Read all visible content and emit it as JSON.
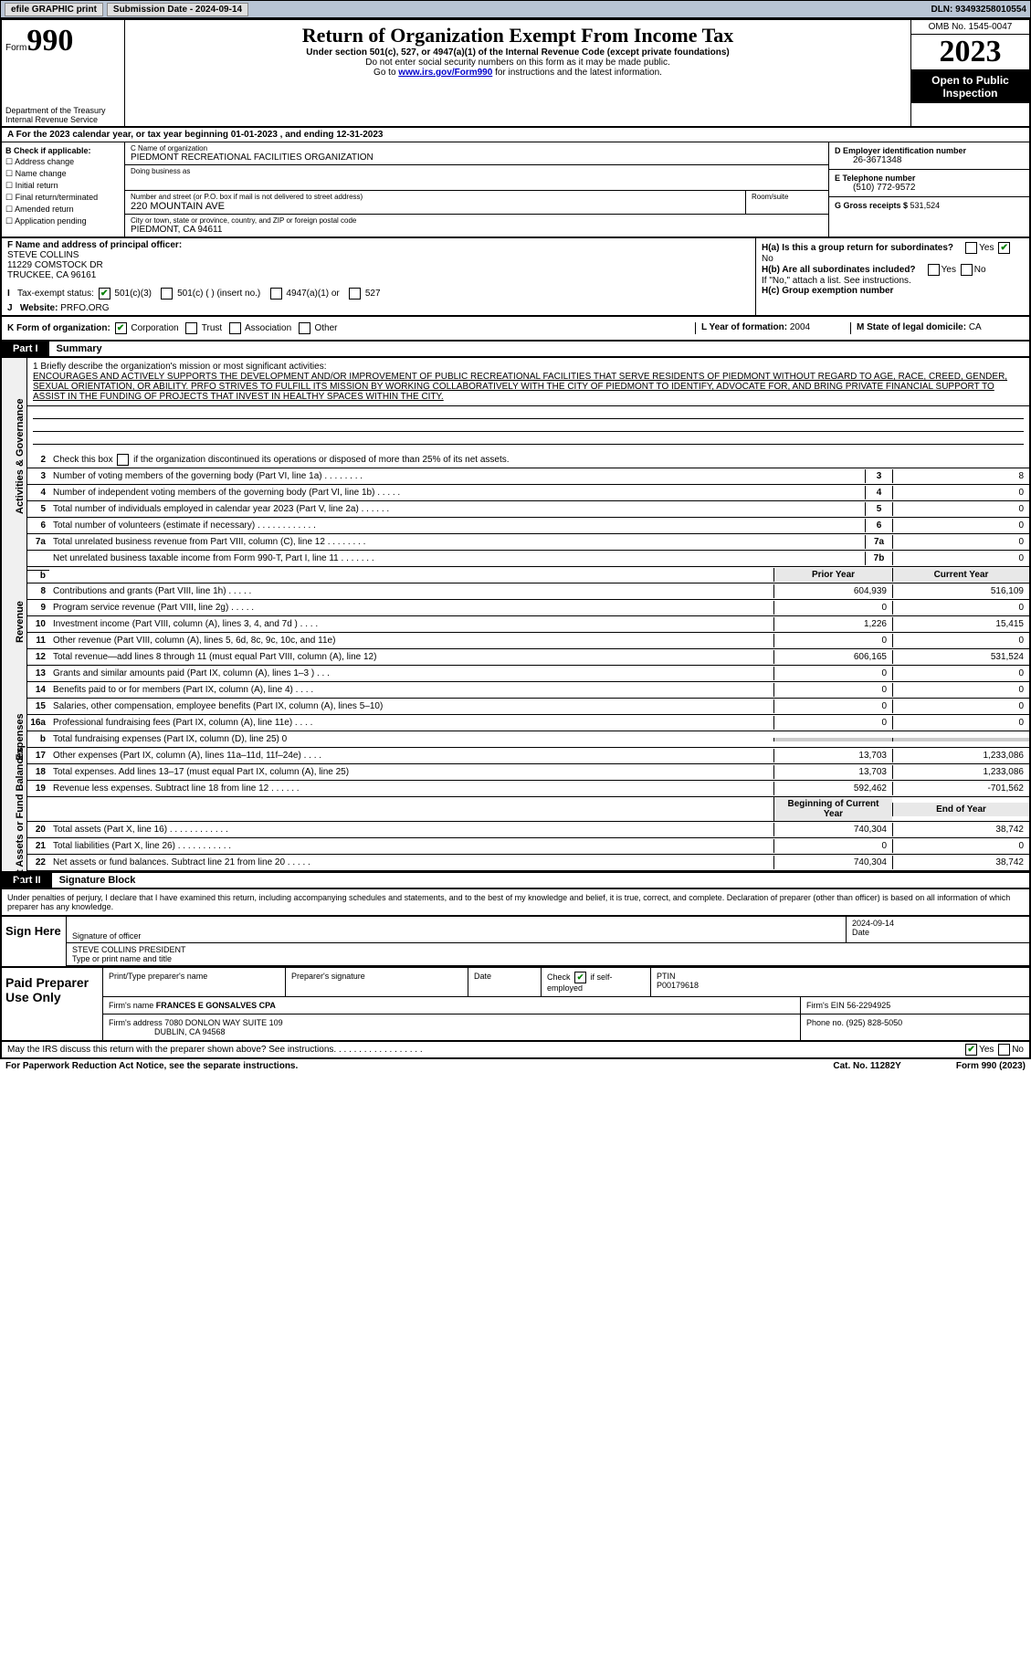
{
  "topbar": {
    "efile": "efile GRAPHIC print",
    "sub_label": "Submission Date - 2024-09-14",
    "dln": "DLN: 93493258010554"
  },
  "header": {
    "form_word": "Form",
    "form_num": "990",
    "dept": "Department of the Treasury\nInternal Revenue Service",
    "title": "Return of Organization Exempt From Income Tax",
    "sub": "Under section 501(c), 527, or 4947(a)(1) of the Internal Revenue Code (except private foundations)",
    "sub2": "Do not enter social security numbers on this form as it may be made public.",
    "goto_pre": "Go to ",
    "goto_link": "www.irs.gov/Form990",
    "goto_post": " for instructions and the latest information.",
    "omb": "OMB No. 1545-0047",
    "year": "2023",
    "open": "Open to Public Inspection"
  },
  "row_a": "A  For the 2023 calendar year, or tax year beginning 01-01-2023    , and ending 12-31-2023",
  "block_b": {
    "b_header": "B Check if applicable:",
    "checks": [
      "Address change",
      "Name change",
      "Initial return",
      "Final return/terminated",
      "Amended return",
      "Application pending"
    ],
    "c_label": "C Name of organization",
    "c_val": "PIEDMONT RECREATIONAL FACILITIES ORGANIZATION",
    "dba_label": "Doing business as",
    "street_label": "Number and street (or P.O. box if mail is not delivered to street address)",
    "street_val": "220 MOUNTAIN AVE",
    "room_label": "Room/suite",
    "city_label": "City or town, state or province, country, and ZIP or foreign postal code",
    "city_val": "PIEDMONT, CA   94611",
    "d_label": "D Employer identification number",
    "d_val": "26-3671348",
    "e_label": "E Telephone number",
    "e_val": "(510) 772-9572",
    "g_label": "G Gross receipts $ ",
    "g_val": "531,524"
  },
  "fhij": {
    "f_label": "F  Name and address of principal officer:",
    "f_name": "STEVE COLLINS",
    "f_addr1": "11229 COMSTOCK DR",
    "f_addr2": "TRUCKEE, CA   96161",
    "i_label": "Tax-exempt status:",
    "i_501c3": "501(c)(3)",
    "i_501c": "501(c) (  ) (insert no.)",
    "i_4947": "4947(a)(1) or",
    "i_527": "527",
    "j_label": "Website: ",
    "j_val": "PRFO.ORG",
    "ha": "H(a)  Is this a group return for subordinates?",
    "hb": "H(b)  Are all subordinates included?",
    "hb2": "If \"No,\" attach a list. See instructions.",
    "hc": "H(c)  Group exemption number ",
    "yes": "Yes",
    "no": "No"
  },
  "row_k": {
    "k_label": "K Form of organization:",
    "corp": "Corporation",
    "trust": "Trust",
    "assoc": "Association",
    "other": "Other",
    "l_label": "L Year of formation: ",
    "l_val": "2004",
    "m_label": "M State of legal domicile: ",
    "m_val": "CA"
  },
  "part1": {
    "tag": "Part I",
    "title": "Summary",
    "side_ag": "Activities & Governance",
    "side_rev": "Revenue",
    "side_exp": "Expenses",
    "side_net": "Net Assets or Fund Balances",
    "l1_label": "1  Briefly describe the organization's mission or most significant activities:",
    "l1_text": "ENCOURAGES AND ACTIVELY SUPPORTS THE DEVELOPMENT AND/OR IMPROVEMENT OF PUBLIC RECREATIONAL FACILITIES THAT SERVE RESIDENTS OF PIEDMONT WITHOUT REGARD TO AGE, RACE, CREED, GENDER, SEXUAL ORIENTATION, OR ABILITY. PRFO STRIVES TO FULFILL ITS MISSION BY WORKING COLLABORATIVELY WITH THE CITY OF PIEDMONT TO IDENTIFY, ADVOCATE FOR, AND BRING PRIVATE FINANCIAL SUPPORT TO ASSIST IN THE FUNDING OF PROJECTS THAT INVEST IN HEALTHY SPACES WITHIN THE CITY.",
    "l2": "Check this box     if the organization discontinued its operations or disposed of more than 25% of its net assets.",
    "rows_ag": [
      {
        "n": "3",
        "desc": "Number of voting members of the governing body (Part VI, line 1a)    .    .    .    .    .    .    .    .",
        "box": "3",
        "val": "8"
      },
      {
        "n": "4",
        "desc": "Number of independent voting members of the governing body (Part VI, line 1b)    .    .    .    .    .",
        "box": "4",
        "val": "0"
      },
      {
        "n": "5",
        "desc": "Total number of individuals employed in calendar year 2023 (Part V, line 2a)    .    .    .    .    .    .",
        "box": "5",
        "val": "0"
      },
      {
        "n": "6",
        "desc": "Total number of volunteers (estimate if necessary)    .    .    .    .    .    .    .    .    .    .    .    .",
        "box": "6",
        "val": "0"
      },
      {
        "n": "7a",
        "desc": "Total unrelated business revenue from Part VIII, column (C), line 12    .    .    .    .    .    .    .    .",
        "box": "7a",
        "val": "0"
      },
      {
        "n": "",
        "desc": "Net unrelated business taxable income from Form 990-T, Part I, line 11    .    .    .    .    .    .    .",
        "box": "7b",
        "val": "0"
      }
    ],
    "hdr_prior": "Prior Year",
    "hdr_curr": "Current Year",
    "rows_rev": [
      {
        "n": "8",
        "desc": "Contributions and grants (Part VIII, line 1h)    .    .    .    .    .",
        "prior": "604,939",
        "curr": "516,109"
      },
      {
        "n": "9",
        "desc": "Program service revenue (Part VIII, line 2g)    .    .    .    .    .",
        "prior": "0",
        "curr": "0"
      },
      {
        "n": "10",
        "desc": "Investment income (Part VIII, column (A), lines 3, 4, and 7d )    .    .    .    .",
        "prior": "1,226",
        "curr": "15,415"
      },
      {
        "n": "11",
        "desc": "Other revenue (Part VIII, column (A), lines 5, 6d, 8c, 9c, 10c, and 11e)",
        "prior": "0",
        "curr": "0"
      },
      {
        "n": "12",
        "desc": "Total revenue—add lines 8 through 11 (must equal Part VIII, column (A), line 12)",
        "prior": "606,165",
        "curr": "531,524"
      }
    ],
    "rows_exp": [
      {
        "n": "13",
        "desc": "Grants and similar amounts paid (Part IX, column (A), lines 1–3 )    .    .    .",
        "prior": "0",
        "curr": "0"
      },
      {
        "n": "14",
        "desc": "Benefits paid to or for members (Part IX, column (A), line 4)    .    .    .    .",
        "prior": "0",
        "curr": "0"
      },
      {
        "n": "15",
        "desc": "Salaries, other compensation, employee benefits (Part IX, column (A), lines 5–10)",
        "prior": "0",
        "curr": "0"
      },
      {
        "n": "16a",
        "desc": "Professional fundraising fees (Part IX, column (A), line 11e)    .    .    .    .",
        "prior": "0",
        "curr": "0"
      },
      {
        "n": "b",
        "desc": "Total fundraising expenses (Part IX, column (D), line 25) 0",
        "prior": "",
        "curr": "",
        "gray": true
      },
      {
        "n": "17",
        "desc": "Other expenses (Part IX, column (A), lines 11a–11d, 11f–24e)    .    .    .    .",
        "prior": "13,703",
        "curr": "1,233,086"
      },
      {
        "n": "18",
        "desc": "Total expenses. Add lines 13–17 (must equal Part IX, column (A), line 25)",
        "prior": "13,703",
        "curr": "1,233,086"
      },
      {
        "n": "19",
        "desc": "Revenue less expenses. Subtract line 18 from line 12    .    .    .    .    .    .",
        "prior": "592,462",
        "curr": "-701,562"
      }
    ],
    "hdr_beg": "Beginning of Current Year",
    "hdr_end": "End of Year",
    "rows_net": [
      {
        "n": "20",
        "desc": "Total assets (Part X, line 16)    .    .    .    .    .    .    .    .    .    .    .    .",
        "prior": "740,304",
        "curr": "38,742"
      },
      {
        "n": "21",
        "desc": "Total liabilities (Part X, line 26)    .    .    .    .    .    .    .    .    .    .    .",
        "prior": "0",
        "curr": "0"
      },
      {
        "n": "22",
        "desc": "Net assets or fund balances. Subtract line 21 from line 20    .    .    .    .    .",
        "prior": "740,304",
        "curr": "38,742"
      }
    ]
  },
  "part2": {
    "tag": "Part II",
    "title": "Signature Block",
    "declare": "Under penalties of perjury, I declare that I have examined this return, including accompanying schedules and statements, and to the best of my knowledge and belief, it is true, correct, and complete. Declaration of preparer (other than officer) is based on all information of which preparer has any knowledge."
  },
  "sign": {
    "label": "Sign Here",
    "sig_label": "Signature of officer",
    "date": "2024-09-14",
    "date_label": "Date",
    "name": "STEVE COLLINS  PRESIDENT",
    "name_label": "Type or print name and title"
  },
  "paid": {
    "label": "Paid Preparer Use Only",
    "col1": "Print/Type preparer's name",
    "col2": "Preparer's signature",
    "col3": "Date",
    "col4_pre": "Check",
    "col4_post": "if self-employed",
    "col5_label": "PTIN",
    "col5_val": "P00179618",
    "firm_name_label": "Firm's name    ",
    "firm_name": "FRANCES E GONSALVES CPA",
    "firm_ein_label": "Firm's EIN   ",
    "firm_ein": "56-2294925",
    "firm_addr_label": "Firm's address ",
    "firm_addr1": "7080 DONLON WAY SUITE 109",
    "firm_addr2": "DUBLIN, CA   94568",
    "phone_label": "Phone no. ",
    "phone": "(925) 828-5050"
  },
  "footer": {
    "discuss": "May the IRS discuss this return with the preparer shown above? See instructions.    .    .    .    .    .    .    .    .    .    .    .    .    .    .    .    .    .",
    "yes": "Yes",
    "no": "No",
    "paperwork": "For Paperwork Reduction Act Notice, see the separate instructions.",
    "cat": "Cat. No. 11282Y",
    "form": "Form 990 (2023)"
  }
}
